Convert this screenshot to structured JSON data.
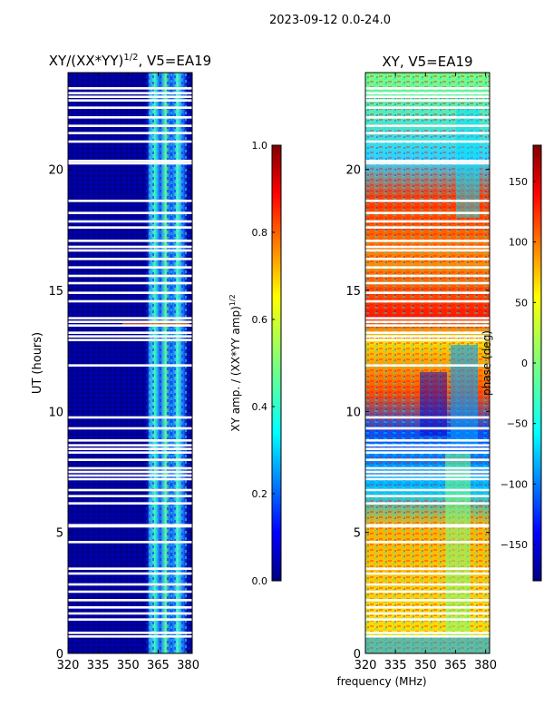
{
  "figure_title": "2023-09-12 0.0-24.0",
  "shared_xlabel": "frequency (MHz)",
  "chart_data": [
    {
      "type": "heatmap",
      "title": "XY/(XX*YY)",
      "title_sup": "1/2",
      "title_suffix": ", V5=EA19",
      "xlabel": "",
      "ylabel": "UT (hours)",
      "xlim": [
        320,
        382
      ],
      "ylim": [
        0,
        24
      ],
      "xticks": [
        320,
        335,
        350,
        365,
        380
      ],
      "yticks": [
        0,
        5,
        10,
        15,
        20
      ],
      "colorbar": {
        "label": "XY amp. / (XX*YY amp)",
        "label_sup": "1/2",
        "range": [
          0.0,
          1.0
        ],
        "ticks": [
          "0.0",
          "0.2",
          "0.4",
          "0.6",
          "0.8",
          "1.0"
        ],
        "colormap": "jet"
      },
      "description_values": {
        "background_amplitude": 0.05,
        "band_amplitude_range": [
          0.2,
          0.6
        ],
        "band_freq_range_mhz": [
          362,
          379
        ]
      }
    },
    {
      "type": "heatmap",
      "title": "XY, V5=EA19",
      "xlabel": "frequency (MHz)",
      "ylabel": "",
      "xlim": [
        320,
        382
      ],
      "ylim": [
        0,
        24
      ],
      "xticks": [
        320,
        335,
        350,
        365,
        380
      ],
      "yticks": [
        0,
        5,
        10,
        15,
        20
      ],
      "colorbar": {
        "label": "phase (deg)",
        "range": [
          -180,
          180
        ],
        "ticks": [
          "150",
          "100",
          "50",
          "0",
          "−50",
          "−100",
          "−150"
        ],
        "colormap": "jet"
      }
    }
  ],
  "colors": {
    "jet_low": "#00007f",
    "jet_high": "#7f0000",
    "gap": "#ffffff"
  },
  "flag_gaps_hours": [
    0.7,
    0.85,
    1.4,
    1.65,
    1.9,
    2.2,
    2.55,
    2.85,
    3.3,
    3.5,
    4.6,
    5.25,
    5.3,
    6.2,
    6.5,
    6.75,
    7.2,
    7.35,
    7.5,
    7.65,
    8.0,
    8.3,
    8.45,
    8.6,
    8.8,
    9.3,
    9.75,
    11.9,
    12.95,
    13.1,
    13.25,
    13.55,
    13.7,
    13.85,
    14.55,
    14.9,
    15.3,
    15.6,
    15.95,
    16.3,
    16.65,
    16.8,
    17.05,
    17.6,
    17.85,
    18.2,
    18.7,
    20.25,
    20.35,
    21.15,
    21.5,
    21.8,
    22.15,
    22.55,
    22.85,
    23.0,
    23.15,
    23.35
  ]
}
